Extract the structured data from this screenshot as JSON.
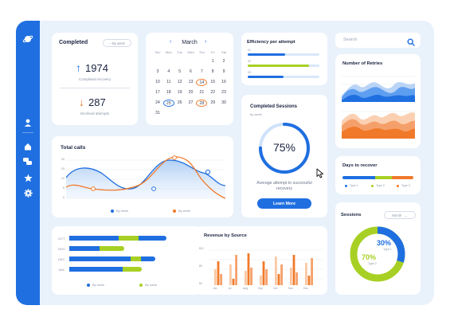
{
  "colors": {
    "blue": "#1f6fe0",
    "orange": "#f07a2a",
    "green": "#a8d024",
    "lightblue": "#d9e8fb",
    "bg": "#e9f2fb"
  },
  "sidebar": {
    "icons": [
      "planet-logo-icon",
      "user-icon",
      "home-icon",
      "chat-icon",
      "star-icon",
      "gear-icon"
    ]
  },
  "completed": {
    "title": "Completed",
    "filter": "By week",
    "recovery_value": "1974",
    "recovery_label": "Completed recovery",
    "declined_value": "287",
    "declined_label": "Declined attempts"
  },
  "calendar": {
    "month": "March",
    "day_headers": [
      "Sun",
      "Mon",
      "Tue",
      "Wed",
      "Thu",
      "Fri",
      "Sat"
    ],
    "days": [
      "",
      "",
      "",
      "",
      "",
      "1",
      "2",
      "3",
      "4",
      "5",
      "6",
      "7",
      "8",
      "9",
      "10",
      "11",
      "12",
      "13",
      "14",
      "15",
      "16",
      "17",
      "18",
      "19",
      "20",
      "21",
      "22",
      "23",
      "24",
      "25",
      "26",
      "27",
      "28",
      "29",
      "30",
      "31"
    ],
    "highlight_orange": [
      "14",
      "28"
    ],
    "highlight_blue": [
      "25"
    ]
  },
  "efficiency": {
    "title": "Efficiency per attempt",
    "rows": [
      {
        "label": "01",
        "value": 0.52,
        "color": "#1f6fe0"
      },
      {
        "label": "02",
        "value": 0.86,
        "color": "#a8d024"
      },
      {
        "label": "03",
        "value": 0.5,
        "color": "#1f6fe0"
      }
    ]
  },
  "search": {
    "placeholder": "Search"
  },
  "retries": {
    "title": "Number of Retries"
  },
  "total_calls": {
    "title": "Total calls",
    "yticks": [
      "20",
      "15",
      "10",
      "5",
      "0"
    ],
    "legend": [
      "By week",
      "By week"
    ]
  },
  "sessions_completed": {
    "title": "Completed Sessions",
    "subtitle": "by week",
    "percent": "75%",
    "percent_value": 75,
    "caption": "Average attempt to successful recovery",
    "button": "Learn More"
  },
  "days_recover": {
    "title": "Days to recover",
    "legend": [
      "Type 1",
      "Type 2",
      "Type 3"
    ]
  },
  "sessions": {
    "title": "Sessions",
    "filter": "Month",
    "blue_percent": "30%",
    "blue_label": "Type 1",
    "green_percent": "70%",
    "green_label": "Type 2"
  },
  "monthly_bars": {
    "months": [
      "OCT",
      "NOV",
      "DEC",
      "JAN"
    ],
    "legend": [
      "By week",
      "By week"
    ]
  },
  "revenue": {
    "title": "Revenue by Source",
    "ylabels": [
      "$10",
      "$5",
      "$0"
    ],
    "xlabels": [
      "Jun",
      "Jul",
      "Aug",
      "Sep",
      "Oct",
      "Nov",
      "Dec"
    ]
  }
}
